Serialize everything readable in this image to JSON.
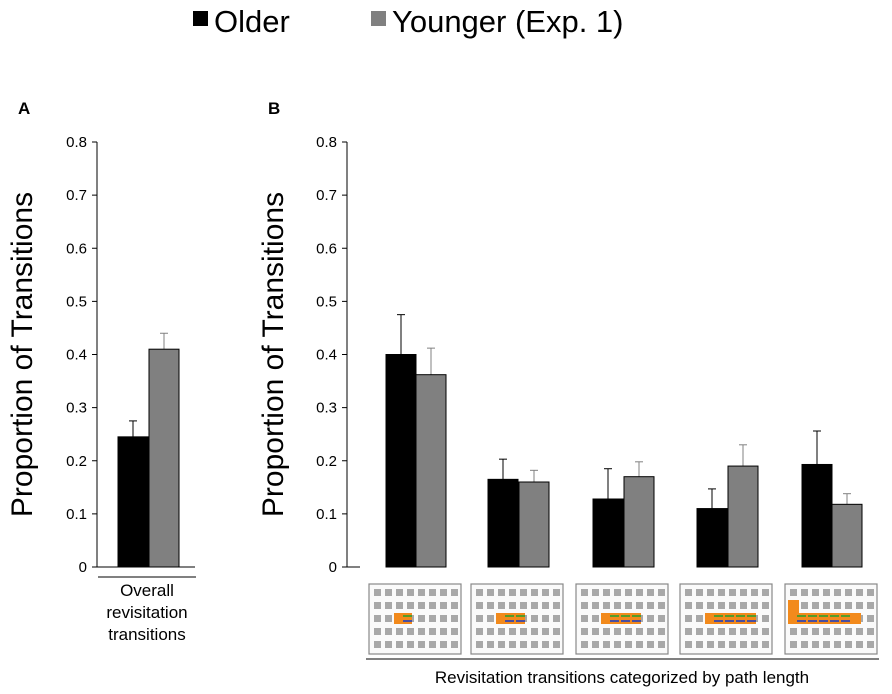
{
  "legend": {
    "older_label": "Older",
    "younger_label": "Younger (Exp. 1)",
    "older_color": "#000000",
    "younger_color": "#808080"
  },
  "panels": {
    "a_label": "A",
    "b_label": "B"
  },
  "chart_data": [
    {
      "type": "bar",
      "panel": "A",
      "ylabel": "Proportion of Transitions",
      "xlabel": "",
      "ylim": [
        0,
        0.8
      ],
      "yticks": [
        "0",
        "0.1",
        "0.2",
        "0.3",
        "0.4",
        "0.5",
        "0.6",
        "0.7",
        "0.8"
      ],
      "category_label_lines": [
        "Overall",
        "revisitation",
        "transitions"
      ],
      "categories": [
        "Overall revisitation transitions"
      ],
      "series": [
        {
          "name": "Older",
          "values": [
            0.245
          ],
          "errors": [
            0.03
          ]
        },
        {
          "name": "Younger (Exp. 1)",
          "values": [
            0.41
          ],
          "errors": [
            0.03
          ]
        }
      ]
    },
    {
      "type": "bar",
      "panel": "B",
      "ylabel": "Proportion of Transitions",
      "xlabel": "Revisitation transitions categorized by path length",
      "ylim": [
        0,
        0.8
      ],
      "yticks": [
        "0",
        "0.1",
        "0.2",
        "0.3",
        "0.4",
        "0.5",
        "0.6",
        "0.7",
        "0.8"
      ],
      "categories": [
        "Path length 1",
        "Path length 2",
        "Path length 3",
        "Path length 4",
        "Path length 5"
      ],
      "category_icons": [
        "path-length-1-icon",
        "path-length-2-icon",
        "path-length-3-icon",
        "path-length-4-icon",
        "path-length-5-icon"
      ],
      "series": [
        {
          "name": "Older",
          "values": [
            0.4,
            0.165,
            0.128,
            0.11,
            0.193
          ],
          "errors": [
            0.075,
            0.038,
            0.057,
            0.037,
            0.063
          ]
        },
        {
          "name": "Younger (Exp. 1)",
          "values": [
            0.362,
            0.16,
            0.17,
            0.19,
            0.118
          ],
          "errors": [
            0.05,
            0.022,
            0.028,
            0.04,
            0.02
          ]
        }
      ]
    }
  ]
}
